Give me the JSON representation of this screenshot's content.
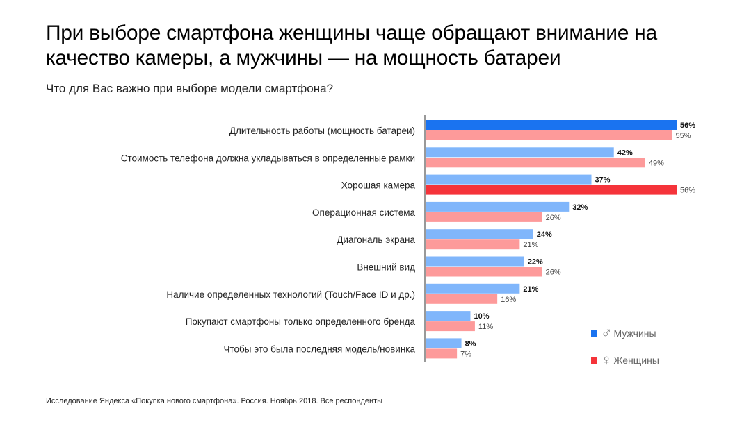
{
  "title": "При выборе смартфона женщины чаще обращают внимание на качество камеры, а мужчины — на мощность батареи",
  "subtitle": "Что для Вас важно при выборе модели смартфона?",
  "footer": "Исследование Яндекса «Покупка нового смартфона». Россия. Ноябрь 2018. Все респонденты",
  "legend": [
    {
      "label": "Мужчины",
      "icon": "male-symbol-icon",
      "symbol": "♂",
      "color": "#1a73f0"
    },
    {
      "label": "Женщины",
      "icon": "female-symbol-icon",
      "symbol": "♀",
      "color": "#f5333a"
    }
  ],
  "chart_data": {
    "type": "bar",
    "orientation": "horizontal",
    "unit": "%",
    "xlim": [
      0,
      56
    ],
    "categories": [
      "Длительность работы (мощность батареи)",
      "Стоимость телефона должна укладываться в определенные рамки",
      "Хорошая камера",
      "Операционная система",
      "Диагональ экрана",
      "Внешний вид",
      "Наличие определенных технологий (Touch/Face ID и др.)",
      "Покупают смартфоны только определенного бренда",
      "Чтобы это была последняя модель/новинка"
    ],
    "series": [
      {
        "name": "Мужчины",
        "values": [
          56,
          42,
          37,
          32,
          24,
          22,
          21,
          10,
          8
        ],
        "color": "#80b6fb",
        "highlight_color": "#1a73f0",
        "highlight_index": 0
      },
      {
        "name": "Женщины",
        "values": [
          55,
          49,
          56,
          26,
          21,
          26,
          16,
          11,
          7
        ],
        "color": "#fd9a9a",
        "highlight_color": "#f5333a",
        "highlight_index": 2
      }
    ],
    "data_labels": {
      "Мужчины": [
        "56%",
        "42%",
        "37%",
        "32%",
        "24%",
        "22%",
        "21%",
        "10%",
        "8%"
      ],
      "Женщины": [
        "55%",
        "49%",
        "56%",
        "26%",
        "21%",
        "26%",
        "16%",
        "11%",
        "7%"
      ]
    },
    "grid": false
  }
}
